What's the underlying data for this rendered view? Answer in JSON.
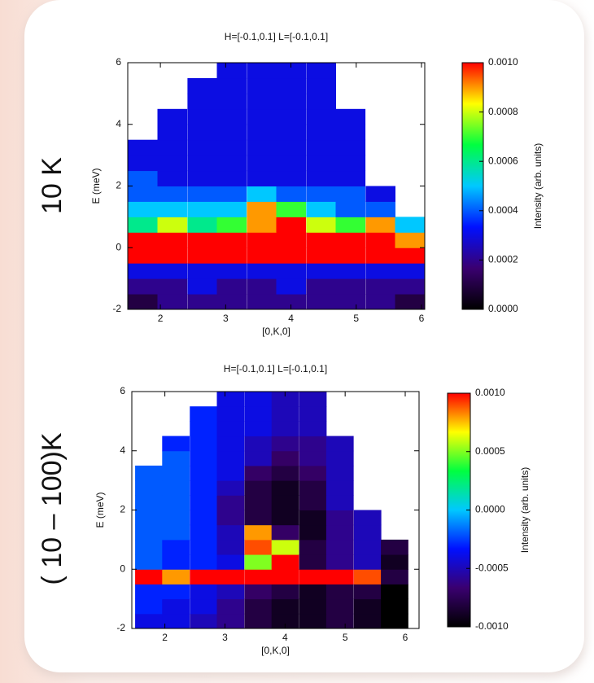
{
  "chart_data": [
    {
      "type": "heatmap",
      "title": "H=[-0.1,0.1] L=[-0.1,0.1]",
      "annotation": "10 K",
      "x_label": "[0,K,0]",
      "y_label": "E (meV)",
      "colorbar_label": "Intensity (arb. units)",
      "xlim": [
        1.5,
        6.05
      ],
      "ylim": [
        -2,
        6
      ],
      "xticks": [
        2,
        3,
        4,
        5,
        6
      ],
      "yticks": [
        -2,
        0,
        2,
        4,
        6
      ],
      "clim": [
        0,
        0.001
      ],
      "cticks": [
        {
          "value": 0,
          "label": "0.0000"
        },
        {
          "value": 0.0002,
          "label": "0.0002"
        },
        {
          "value": 0.0004,
          "label": "0.0004"
        },
        {
          "value": 0.0006,
          "label": "0.0006"
        },
        {
          "value": 0.0008,
          "label": "0.0008"
        },
        {
          "value": 0.001,
          "label": "0.0010"
        }
      ],
      "colormap": [
        "#000000",
        "#3a0070",
        "#0010ff",
        "#00c8ff",
        "#00ff40",
        "#ffff00",
        "#ff0000"
      ],
      "x": [
        1.73,
        2.18,
        2.64,
        3.09,
        3.55,
        4.0,
        4.46,
        4.91,
        5.37,
        5.82
      ],
      "y": [
        -1.75,
        -1.25,
        -0.75,
        -0.25,
        0.25,
        0.75,
        1.25,
        1.75,
        2.25,
        2.75,
        3.25,
        3.75,
        4.25,
        4.75,
        5.25,
        5.75
      ],
      "values": [
        [
          0.0001,
          0.0002,
          0.0002,
          0.0002,
          0.0002,
          0.0002,
          0.0002,
          0.0002,
          0.0002,
          0.0001
        ],
        [
          0.0002,
          0.0002,
          0.0003,
          0.0002,
          0.0002,
          0.0003,
          0.0002,
          0.0002,
          0.0002,
          0.0002
        ],
        [
          0.0003,
          0.0003,
          0.0003,
          0.0003,
          0.0003,
          0.0003,
          0.0003,
          0.0003,
          0.0003,
          0.0003
        ],
        [
          0.001,
          0.001,
          0.001,
          0.001,
          0.001,
          0.001,
          0.001,
          0.001,
          0.001,
          0.001
        ],
        [
          0.001,
          0.001,
          0.001,
          0.001,
          0.001,
          0.001,
          0.001,
          0.001,
          0.001,
          0.0009
        ],
        [
          0.0006,
          0.0008,
          0.0006,
          0.0007,
          0.0009,
          0.001,
          0.0008,
          0.0007,
          0.0009,
          0.0005
        ],
        [
          0.0005,
          0.0005,
          0.0005,
          0.0005,
          0.0009,
          0.0007,
          0.0005,
          0.0004,
          0.0004,
          null
        ],
        [
          0.0004,
          0.0004,
          0.0004,
          0.0004,
          0.0005,
          0.0004,
          0.0004,
          0.0004,
          0.0003,
          null
        ],
        [
          0.0004,
          0.0003,
          0.0003,
          0.0003,
          0.0003,
          0.0003,
          0.0003,
          0.0003,
          null,
          null
        ],
        [
          0.0003,
          0.0003,
          0.0003,
          0.0003,
          0.0003,
          0.0003,
          0.0003,
          0.0003,
          null,
          null
        ],
        [
          0.0003,
          0.0003,
          0.0003,
          0.0003,
          0.0003,
          0.0003,
          0.0003,
          0.0003,
          null,
          null
        ],
        [
          null,
          0.0003,
          0.0003,
          0.0003,
          0.0003,
          0.0003,
          0.0003,
          0.0003,
          null,
          null
        ],
        [
          null,
          0.0003,
          0.0003,
          0.0003,
          0.0003,
          0.0003,
          0.0003,
          0.0003,
          null,
          null
        ],
        [
          null,
          null,
          0.0003,
          0.0003,
          0.0003,
          0.0003,
          0.0003,
          null,
          null,
          null
        ],
        [
          null,
          null,
          0.0003,
          0.0003,
          0.0003,
          0.0003,
          0.0003,
          null,
          null,
          null
        ],
        [
          null,
          null,
          null,
          0.0003,
          0.0003,
          0.0003,
          0.0003,
          null,
          null,
          null
        ]
      ]
    },
    {
      "type": "heatmap",
      "title": "H=[-0.1,0.1] L=[-0.1,0.1]",
      "annotation": "( 10 – 100)K",
      "x_label": "[0,K,0]",
      "y_label": "E (meV)",
      "colorbar_label": "Intensity (arb. units)",
      "xlim": [
        1.45,
        6.23
      ],
      "ylim": [
        -2,
        6
      ],
      "xticks": [
        2,
        3,
        4,
        5,
        6
      ],
      "yticks": [
        -2,
        0,
        2,
        4,
        6
      ],
      "clim": [
        -0.001,
        0.001
      ],
      "cticks": [
        {
          "value": -0.001,
          "label": "-0.0010"
        },
        {
          "value": -0.0005,
          "label": "-0.0005"
        },
        {
          "value": 0,
          "label": "0.0000"
        },
        {
          "value": 0.0005,
          "label": "0.0005"
        },
        {
          "value": 0.001,
          "label": "0.0010"
        }
      ],
      "colormap": [
        "#000000",
        "#3a0070",
        "#0010ff",
        "#00c8ff",
        "#00ff40",
        "#ffff00",
        "#ff0000"
      ],
      "x": [
        1.73,
        2.18,
        2.64,
        3.09,
        3.55,
        4.0,
        4.46,
        4.91,
        5.37,
        5.82
      ],
      "y": [
        -1.75,
        -1.25,
        -0.75,
        -0.25,
        0.25,
        0.75,
        1.25,
        1.75,
        2.25,
        2.75,
        3.25,
        3.75,
        4.25,
        4.75,
        5.25,
        5.75
      ],
      "values": [
        [
          -0.0004,
          -0.0004,
          -0.0005,
          -0.0006,
          -0.0008,
          -0.0009,
          -0.0009,
          -0.0008,
          -0.0009,
          -0.001
        ],
        [
          -0.0003,
          -0.0004,
          -0.0004,
          -0.0006,
          -0.0008,
          -0.0009,
          -0.0009,
          -0.0008,
          -0.0009,
          -0.001
        ],
        [
          -0.0003,
          -0.0003,
          -0.0004,
          -0.0005,
          -0.0007,
          -0.0008,
          -0.0009,
          -0.0008,
          -0.0008,
          -0.001
        ],
        [
          0.001,
          0.0008,
          0.001,
          0.001,
          0.001,
          0.001,
          0.001,
          0.001,
          0.0009,
          -0.0008
        ],
        [
          -0.0002,
          -0.0003,
          -0.0003,
          -0.0004,
          0.0005,
          0.001,
          -0.0008,
          -0.0006,
          -0.0005,
          -0.0009
        ],
        [
          -0.0002,
          -0.0003,
          -0.0003,
          -0.0005,
          0.0009,
          0.0006,
          -0.0008,
          -0.0006,
          -0.0005,
          -0.0008
        ],
        [
          -0.0002,
          -0.0002,
          -0.0003,
          -0.0005,
          0.0008,
          -0.0007,
          -0.0009,
          -0.0006,
          -0.0005,
          null
        ],
        [
          -0.0002,
          -0.0002,
          -0.0003,
          -0.0006,
          -0.0008,
          -0.0009,
          -0.0009,
          -0.0006,
          -0.0005,
          null
        ],
        [
          -0.0002,
          -0.0002,
          -0.0003,
          -0.0006,
          -0.0008,
          -0.0009,
          -0.0008,
          -0.0005,
          null,
          null
        ],
        [
          -0.0002,
          -0.0002,
          -0.0003,
          -0.0005,
          -0.0008,
          -0.0009,
          -0.0008,
          -0.0005,
          null,
          null
        ],
        [
          -0.0002,
          -0.0002,
          -0.0003,
          -0.0004,
          -0.0007,
          -0.0008,
          -0.0007,
          -0.0005,
          null,
          null
        ],
        [
          null,
          -0.0002,
          -0.0003,
          -0.0004,
          -0.0005,
          -0.0007,
          -0.0006,
          -0.0005,
          null,
          null
        ],
        [
          null,
          -0.0003,
          -0.0003,
          -0.0004,
          -0.0005,
          -0.0006,
          -0.0006,
          -0.0005,
          null,
          null
        ],
        [
          null,
          null,
          -0.0003,
          -0.0004,
          -0.0004,
          -0.0005,
          -0.0005,
          null,
          null,
          null
        ],
        [
          null,
          null,
          -0.0003,
          -0.0004,
          -0.0004,
          -0.0005,
          -0.0005,
          null,
          null,
          null
        ],
        [
          null,
          null,
          null,
          -0.0004,
          -0.0004,
          -0.0005,
          -0.0005,
          null,
          null,
          null
        ]
      ]
    }
  ]
}
